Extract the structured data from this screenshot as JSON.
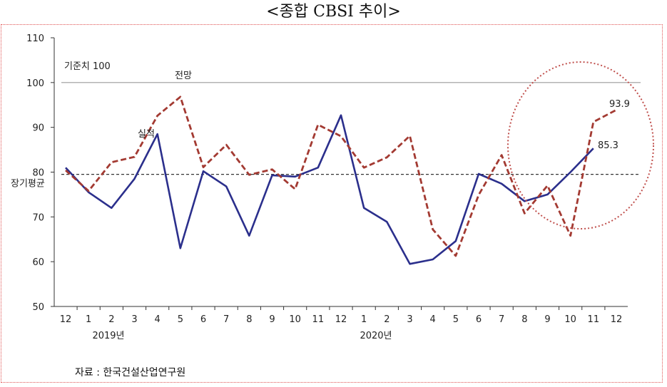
{
  "title": "<종합 CBSI 추이>",
  "source": "자료 : 한국건설산업연구원",
  "colors": {
    "actual": "#2b2f8c",
    "forecast": "#a33a32",
    "reference": "#9a9a9a",
    "average": "#333333",
    "circle": "#c0504d",
    "frame": "#e05050"
  },
  "chart_data": {
    "type": "line",
    "categories": [
      "12",
      "1",
      "2",
      "3",
      "4",
      "5",
      "6",
      "7",
      "8",
      "9",
      "10",
      "11",
      "12",
      "1",
      "2",
      "3",
      "4",
      "5",
      "6",
      "7",
      "8",
      "9",
      "10",
      "11",
      "12"
    ],
    "year_labels": [
      "2019년",
      "2020년"
    ],
    "ylim": [
      50,
      110
    ],
    "yticks": [
      50,
      60,
      70,
      80,
      90,
      100,
      110
    ],
    "series": [
      {
        "name": "실적",
        "style": "solid",
        "values": [
          81.0,
          75.5,
          72.0,
          78.5,
          88.5,
          63.0,
          80.2,
          76.8,
          65.8,
          79.3,
          79.0,
          81.0,
          92.7,
          72.0,
          68.9,
          59.5,
          60.5,
          64.6,
          79.6,
          77.4,
          73.5,
          75.0,
          80.0,
          85.3,
          null
        ]
      },
      {
        "name": "전망",
        "style": "dashed",
        "values": [
          80.4,
          75.8,
          82.2,
          83.4,
          92.6,
          96.8,
          81.1,
          86.1,
          79.4,
          80.6,
          76.2,
          90.6,
          88.0,
          81.0,
          83.3,
          88.1,
          67.2,
          61.3,
          74.9,
          83.8,
          70.8,
          77.0,
          65.8,
          91.2,
          93.9
        ]
      }
    ],
    "reference_line": {
      "label": "기준치 100",
      "value": 100
    },
    "average_line": {
      "label": "장기평균",
      "value": 79.5
    },
    "annotations": {
      "actual_last": "85.3",
      "forecast_last": "93.9"
    }
  }
}
